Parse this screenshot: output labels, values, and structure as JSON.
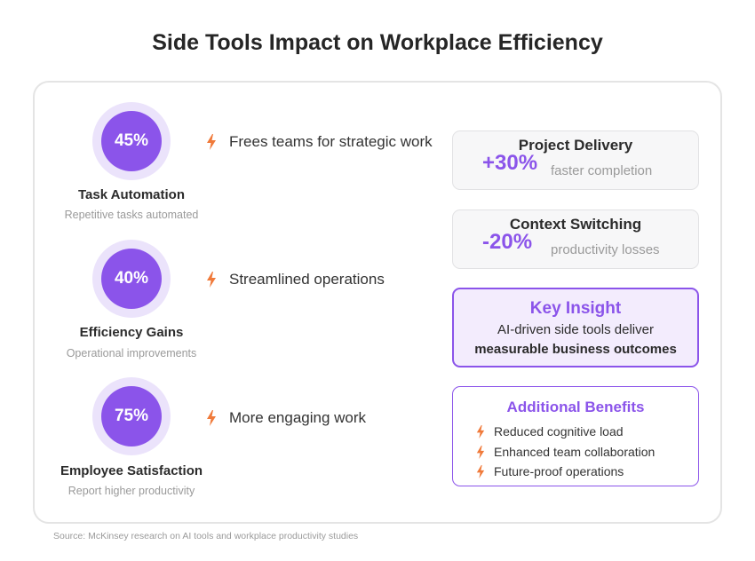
{
  "title": "Side Tools Impact on Workplace Efficiency",
  "metrics": [
    {
      "value": "45%",
      "label": "Task Automation",
      "sub": "Repetitive tasks automated",
      "bullet": "Frees teams for strategic work"
    },
    {
      "value": "40%",
      "label": "Efficiency Gains",
      "sub": "Operational improvements",
      "bullet": "Streamlined operations"
    },
    {
      "value": "75%",
      "label": "Employee Satisfaction",
      "sub": "Report higher productivity",
      "bullet": "More engaging work"
    }
  ],
  "cards": [
    {
      "title": "Project Delivery",
      "value": "+30%",
      "note": "faster completion"
    },
    {
      "title": "Context Switching",
      "value": "-20%",
      "note": "productivity losses"
    }
  ],
  "insight": {
    "title": "Key Insight",
    "line1": "AI-driven side tools deliver",
    "line2": "measurable business outcomes"
  },
  "benefits": {
    "title": "Additional Benefits",
    "items": [
      "Reduced cognitive load",
      "Enhanced team collaboration",
      "Future-proof operations"
    ]
  },
  "source": "Source: McKinsey research on AI tools and workplace productivity studies",
  "colors": {
    "accent": "#8b54ea",
    "ring": "#ebe3fb",
    "bolt": "#f07a3a"
  },
  "icons": {
    "bullet": "lightning-bolt-icon"
  }
}
